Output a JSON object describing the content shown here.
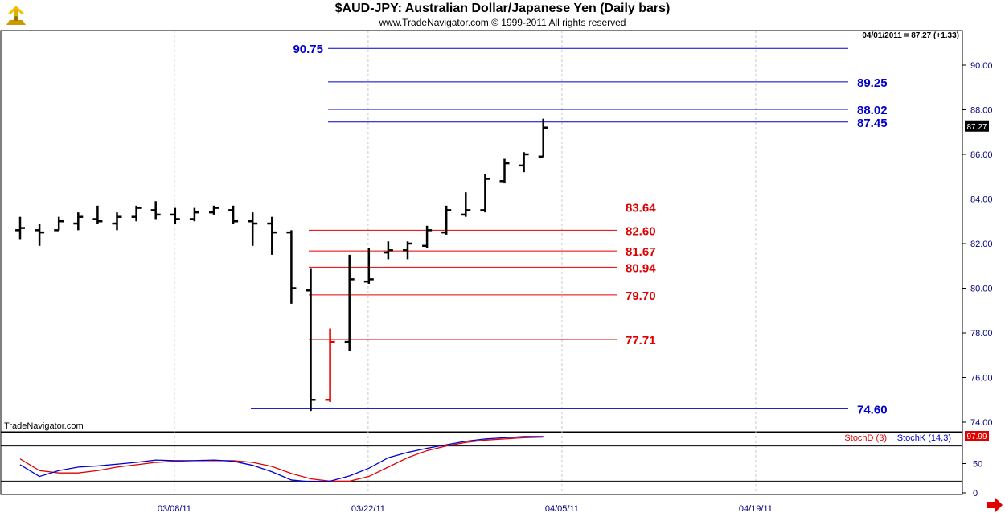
{
  "header": {
    "title": "$AUD-JPY:  Australian Dollar/Japanese Yen  (Daily bars)",
    "subtitle": "www.TradeNavigator.com © 1999-2011 All rights reserved",
    "last_info": "04/01/2011 = 87.27 (+1.33)",
    "watermark": "TradeNavigator.com"
  },
  "chart_data": [
    {
      "type": "ohlc",
      "title": "$AUD-JPY:  Australian Dollar/Japanese Yen  (Daily bars)",
      "ylim": [
        73.5,
        92.0
      ],
      "y_ticks": [
        "74.00",
        "76.00",
        "78.00",
        "80.00",
        "82.00",
        "84.00",
        "86.00",
        "88.00",
        "90.00"
      ],
      "y_tick_values": [
        74,
        76,
        78,
        80,
        82,
        84,
        86,
        88,
        90
      ],
      "x_ticks": [
        "03/08/11",
        "03/22/11",
        "04/05/11",
        "04/19/11"
      ],
      "x_tick_index": [
        9,
        19,
        29,
        39
      ],
      "last_price_label": "87.27",
      "last_price": 87.27,
      "bars": [
        {
          "o": 82.6,
          "h": 83.2,
          "l": 82.2,
          "c": 82.7,
          "color": "#000000"
        },
        {
          "o": 82.6,
          "h": 82.9,
          "l": 81.9,
          "c": 82.5,
          "color": "#000000"
        },
        {
          "o": 82.6,
          "h": 83.2,
          "l": 82.6,
          "c": 83.0,
          "color": "#000000"
        },
        {
          "o": 82.9,
          "h": 83.4,
          "l": 82.6,
          "c": 83.2,
          "color": "#000000"
        },
        {
          "o": 83.1,
          "h": 83.7,
          "l": 82.9,
          "c": 83.0,
          "color": "#000000"
        },
        {
          "o": 82.9,
          "h": 83.4,
          "l": 82.6,
          "c": 83.2,
          "color": "#000000"
        },
        {
          "o": 83.2,
          "h": 83.7,
          "l": 83.0,
          "c": 83.6,
          "color": "#000000"
        },
        {
          "o": 83.5,
          "h": 83.9,
          "l": 83.1,
          "c": 83.3,
          "color": "#000000"
        },
        {
          "o": 83.3,
          "h": 83.6,
          "l": 82.9,
          "c": 83.1,
          "color": "#000000"
        },
        {
          "o": 83.1,
          "h": 83.6,
          "l": 83.0,
          "c": 83.4,
          "color": "#000000"
        },
        {
          "o": 83.4,
          "h": 83.7,
          "l": 83.3,
          "c": 83.6,
          "color": "#000000"
        },
        {
          "o": 83.5,
          "h": 83.7,
          "l": 82.9,
          "c": 83.0,
          "color": "#000000"
        },
        {
          "o": 83.0,
          "h": 83.4,
          "l": 81.9,
          "c": 82.9,
          "color": "#000000"
        },
        {
          "o": 82.9,
          "h": 83.2,
          "l": 81.5,
          "c": 82.5,
          "color": "#000000"
        },
        {
          "o": 82.5,
          "h": 82.6,
          "l": 79.3,
          "c": 80.0,
          "color": "#000000"
        },
        {
          "o": 79.9,
          "h": 80.9,
          "l": 74.5,
          "c": 75.0,
          "color": "#000000"
        },
        {
          "o": 75.0,
          "h": 78.2,
          "l": 74.9,
          "c": 77.6,
          "color": "#e00000"
        },
        {
          "o": 77.6,
          "h": 81.5,
          "l": 77.2,
          "c": 80.4,
          "color": "#000000"
        },
        {
          "o": 80.3,
          "h": 81.8,
          "l": 80.2,
          "c": 80.4,
          "color": "#000000"
        },
        {
          "o": 81.6,
          "h": 82.1,
          "l": 81.3,
          "c": 81.7,
          "color": "#000000"
        },
        {
          "o": 81.7,
          "h": 82.1,
          "l": 81.3,
          "c": 82.0,
          "color": "#000000"
        },
        {
          "o": 81.9,
          "h": 82.8,
          "l": 81.8,
          "c": 82.6,
          "color": "#000000"
        },
        {
          "o": 82.5,
          "h": 83.7,
          "l": 82.4,
          "c": 83.5,
          "color": "#000000"
        },
        {
          "o": 83.3,
          "h": 84.3,
          "l": 83.2,
          "c": 83.5,
          "color": "#000000"
        },
        {
          "o": 83.5,
          "h": 85.1,
          "l": 83.4,
          "c": 84.9,
          "color": "#000000"
        },
        {
          "o": 84.8,
          "h": 85.8,
          "l": 84.7,
          "c": 85.6,
          "color": "#000000"
        },
        {
          "o": 85.5,
          "h": 86.1,
          "l": 85.2,
          "c": 86.0,
          "color": "#000000"
        },
        {
          "o": 85.9,
          "h": 87.6,
          "l": 85.9,
          "c": 87.2,
          "color": "#000000"
        }
      ],
      "levels": [
        {
          "value": 90.75,
          "label": "90.75",
          "color": "#0000cc",
          "label_side": "left",
          "x0": 20,
          "x1": 42
        },
        {
          "value": 89.25,
          "label": "89.25",
          "color": "#0000cc",
          "label_side": "right",
          "x0": 20,
          "x1": 42
        },
        {
          "value": 88.02,
          "label": "88.02",
          "color": "#0000cc",
          "label_side": "right",
          "x0": 20,
          "x1": 42
        },
        {
          "value": 87.45,
          "label": "87.45",
          "color": "#0000cc",
          "label_side": "right",
          "x0": 20,
          "x1": 42
        },
        {
          "value": 83.64,
          "label": "83.64",
          "color": "#e00000",
          "label_side": "right",
          "x0": 15,
          "x1": 30
        },
        {
          "value": 82.6,
          "label": "82.60",
          "color": "#e00000",
          "label_side": "right",
          "x0": 15,
          "x1": 30
        },
        {
          "value": 81.67,
          "label": "81.67",
          "color": "#e00000",
          "label_side": "right",
          "x0": 15,
          "x1": 30
        },
        {
          "value": 80.94,
          "label": "80.94",
          "color": "#e00000",
          "label_side": "right",
          "x0": 15,
          "x1": 30
        },
        {
          "value": 79.7,
          "label": "79.70",
          "color": "#e00000",
          "label_side": "right",
          "x0": 15,
          "x1": 30
        },
        {
          "value": 77.71,
          "label": "77.71",
          "color": "#e00000",
          "label_side": "right",
          "x0": 15,
          "x1": 30
        },
        {
          "value": 74.6,
          "label": "74.60",
          "color": "#0000cc",
          "label_side": "right",
          "x0": 12,
          "x1": 42
        }
      ]
    },
    {
      "type": "line",
      "ylim": [
        0,
        100
      ],
      "y_ticks": [
        "50",
        "0"
      ],
      "y_tick_values": [
        50,
        0
      ],
      "levels": [
        80,
        20
      ],
      "last_value_label": "97.99",
      "series": [
        {
          "name": "StochD (3)",
          "color": "#e00000",
          "values": [
            58,
            38,
            34,
            34,
            38,
            44,
            48,
            52,
            54,
            55,
            55,
            55,
            52,
            45,
            33,
            24,
            20,
            20,
            28,
            44,
            60,
            72,
            80,
            86,
            90,
            92,
            94,
            95
          ]
        },
        {
          "name": "StochK (14,3)",
          "color": "#0000cc",
          "values": [
            48,
            28,
            38,
            44,
            46,
            49,
            52,
            56,
            55,
            55,
            56,
            54,
            47,
            36,
            22,
            19,
            20,
            29,
            42,
            60,
            69,
            76,
            82,
            88,
            92,
            94,
            96,
            96
          ]
        }
      ]
    }
  ],
  "colors": {
    "axis_label": "#000080",
    "grid": "#c8c8c8",
    "level_blue": "#0000cc",
    "level_red": "#e00000"
  }
}
